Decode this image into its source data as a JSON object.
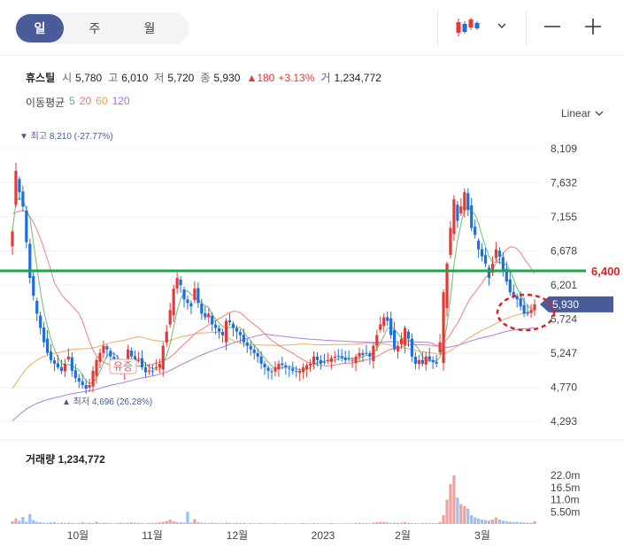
{
  "period_tabs": [
    {
      "label": "일",
      "active": true
    },
    {
      "label": "주",
      "active": false
    },
    {
      "label": "월",
      "active": false
    }
  ],
  "toolbar": {
    "candle_icon": "candlestick-icon",
    "dropdown_icon": "chevron-down-icon",
    "zoom_out_icon": "minus-icon",
    "zoom_in_icon": "plus-icon"
  },
  "stock": {
    "name": "휴스틸",
    "open_label": "시",
    "open": "5,780",
    "high_label": "고",
    "high": "6,010",
    "low_label": "저",
    "low": "5,720",
    "close_label": "종",
    "close": "5,930",
    "change": "▲180",
    "change_pct": "+3.13%",
    "volume_label": "거",
    "volume": "1,234,772"
  },
  "moving_avg": {
    "label": "이동평균",
    "periods": [
      {
        "label": "5",
        "color": "#5cb85c"
      },
      {
        "label": "20",
        "color": "#f07070"
      },
      {
        "label": "60",
        "color": "#f0a050"
      },
      {
        "label": "120",
        "color": "#a070e0"
      }
    ]
  },
  "scale_button": {
    "label": "Linear",
    "icon": "chevron-down-icon"
  },
  "volume_panel": {
    "label": "거래량",
    "value": "1,234,772"
  },
  "colors": {
    "up": "#e53935",
    "down": "#1e6fd9",
    "horizontal_line": "#1aa84a",
    "price_tag_bg": "#4a5b9a",
    "marker_circle": "#e02020"
  },
  "chart_data": {
    "type": "candlestick",
    "y_ticks": [
      "8,109",
      "7,632",
      "7,155",
      "6,678",
      "6,201",
      "5,724",
      "5,247",
      "4,770",
      "4,293"
    ],
    "ylim": [
      4293,
      8300
    ],
    "x_ticks": [
      "10월",
      "11월",
      "12월",
      "2023",
      "2월",
      "3월"
    ],
    "volume_ticks": [
      "22.0m",
      "16.5m",
      "11.0m",
      "5.50m"
    ],
    "volume_ylim": [
      0,
      24
    ],
    "max_annotation": "최고 8,210 (-27.77%)",
    "min_annotation": "최저 4,696 (26.28%)",
    "rights_issue_label": "유증",
    "horizontal_line_label": "6,400",
    "horizontal_line_value": 6400,
    "current_price_label": "5,930",
    "current_price": 5930,
    "close_approx": [
      6950,
      7800,
      7500,
      7300,
      6800,
      6300,
      6050,
      5800,
      5600,
      5400,
      5250,
      5150,
      5100,
      5050,
      5000,
      5100,
      5200,
      5000,
      4900,
      4850,
      4800,
      4750,
      4800,
      5000,
      5150,
      5250,
      5350,
      5300,
      5200,
      5100,
      5050,
      5000,
      5100,
      5300,
      5200,
      5100,
      5150,
      5050,
      4980,
      5000,
      5000,
      5050,
      5100,
      5350,
      5550,
      5850,
      6150,
      6300,
      6200,
      6000,
      5950,
      5900,
      6150,
      5950,
      5800,
      5750,
      5800,
      5650,
      5600,
      5550,
      5500,
      5700,
      5680,
      5600,
      5550,
      5500,
      5400,
      5350,
      5300,
      5250,
      5200,
      5100,
      5050,
      5000,
      4980,
      5050,
      5100,
      5080,
      5050,
      5030,
      5000,
      4990,
      5000,
      5050,
      5080,
      5100,
      5200,
      5150,
      5100,
      5120,
      5150,
      5180,
      5200,
      5200,
      5180,
      5150,
      5160,
      5150,
      5200,
      5250,
      5220,
      5250,
      5200,
      5350,
      5500,
      5650,
      5750,
      5700,
      5500,
      5300,
      5350,
      5450,
      5600,
      5450,
      5200,
      5100,
      5150,
      5100,
      5200,
      5150,
      5120,
      5100,
      5400,
      6100,
      6500,
      7000,
      7400,
      7100,
      7300,
      7500,
      7250,
      7000,
      6900,
      6700,
      6600,
      6500,
      6300,
      6500,
      6700,
      6600,
      6400,
      6250,
      6100,
      6050,
      6000,
      5900,
      5800,
      5800,
      5850,
      5930
    ],
    "volume_approx": [
      1.2,
      2.5,
      1.5,
      3.2,
      1.0,
      4.5,
      1.8,
      1.0,
      0.8,
      0.6,
      0.5,
      0.7,
      0.8,
      0.4,
      0.6,
      0.5,
      0.6,
      0.4,
      0.3,
      0.5,
      0.8,
      0.5,
      0.6,
      0.4,
      1.0,
      0.5,
      0.6,
      0.5,
      0.4,
      0.3,
      0.5,
      0.6,
      0.4,
      0.5,
      0.7,
      0.6,
      0.5,
      0.4,
      0.3,
      0.4,
      0.5,
      0.6,
      0.7,
      1.0,
      1.4,
      2.0,
      1.2,
      0.9,
      0.8,
      0.6,
      5.5,
      0.7,
      2.2,
      0.9,
      0.6,
      0.5,
      0.4,
      0.6,
      0.5,
      0.4,
      0.4,
      0.6,
      0.5,
      0.4,
      0.5,
      0.4,
      0.5,
      0.3,
      0.4,
      0.3,
      0.3,
      0.4,
      0.3,
      0.3,
      0.3,
      0.4,
      0.3,
      0.3,
      0.4,
      0.3,
      0.3,
      0.3,
      0.3,
      0.4,
      0.3,
      0.3,
      0.4,
      0.3,
      0.3,
      0.3,
      0.3,
      0.4,
      0.3,
      0.3,
      0.3,
      0.3,
      0.3,
      0.3,
      0.4,
      0.5,
      0.4,
      0.4,
      0.3,
      0.6,
      0.8,
      1.0,
      0.9,
      0.7,
      0.5,
      0.6,
      0.5,
      0.6,
      0.8,
      0.5,
      0.4,
      0.4,
      0.3,
      0.4,
      0.5,
      0.4,
      0.4,
      0.4,
      0.9,
      4.0,
      11.0,
      18.0,
      22.0,
      12.0,
      9.0,
      8.0,
      7.0,
      4.0,
      3.0,
      2.5,
      2.0,
      1.8,
      1.5,
      2.0,
      3.0,
      2.0,
      1.5,
      1.2,
      1.0,
      0.9,
      1.0,
      0.8,
      0.7,
      0.6,
      0.5,
      1.2
    ]
  }
}
